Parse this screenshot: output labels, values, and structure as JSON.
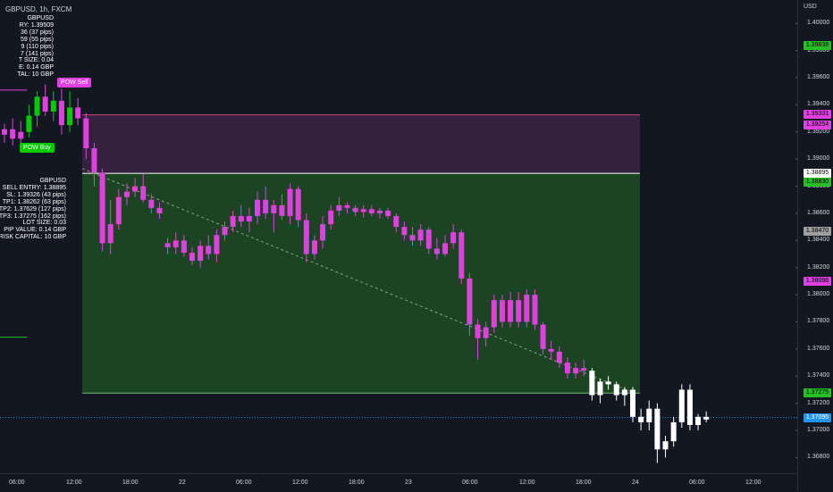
{
  "header": {
    "title": "GBPUSD, 1h, FXCM"
  },
  "axis": {
    "currency": "USD",
    "price_ticks": [
      "1.40000",
      "1.39800",
      "1.39600",
      "1.39400",
      "1.39200",
      "1.39000",
      "1.38800",
      "1.38600",
      "1.38400",
      "1.38200",
      "1.38000",
      "1.37800",
      "1.37600",
      "1.37400",
      "1.37200",
      "1.37000",
      "1.36800"
    ],
    "time_ticks": [
      "06:00",
      "12:00",
      "18:00",
      "22",
      "06:00",
      "12:00",
      "18:00",
      "23",
      "06:00",
      "12:00",
      "18:00",
      "24",
      "06:00",
      "12:00"
    ]
  },
  "price_tags": [
    {
      "text": "1.39838",
      "bg": "#26c026",
      "fg": "#000000",
      "price": 1.39838
    },
    {
      "text": "1.39331",
      "bg": "#e040e0",
      "fg": "#000000",
      "price": 1.39331
    },
    {
      "text": "1.39254",
      "bg": "#e040e0",
      "fg": "#000000",
      "price": 1.39254
    },
    {
      "text": "1.38895",
      "bg": "#ffffff",
      "fg": "#000000",
      "price": 1.38895
    },
    {
      "text": "1.38830",
      "bg": "#26c026",
      "fg": "#000000",
      "price": 1.3883
    },
    {
      "text": "1.38470",
      "bg": "#a0a0a0",
      "fg": "#000000",
      "price": 1.3847
    },
    {
      "text": "1.38098",
      "bg": "#e040e0",
      "fg": "#000000",
      "price": 1.38098
    },
    {
      "text": "1.37275",
      "bg": "#26c026",
      "fg": "#000000",
      "price": 1.37275
    },
    {
      "text": "1.37095",
      "bg": "#2196f3",
      "fg": "#ffffff",
      "price": 1.37095
    }
  ],
  "buy_info_lines": [
    "GBPUSD",
    "RY: 1.39509",
    "36 (37 pips)",
    "59 (55 pips)",
    "9 (110 pips)",
    "7 (141 pips)",
    "T SIZE: 0.04",
    "E: 0.14 GBP",
    "TAL: 10 GBP"
  ],
  "sell_info_lines": [
    "GBPUSD",
    "SELL ENTRY: 1.38895",
    "SL: 1.39326 (43 pips)",
    "TP1: 1.38262 (63 pips)",
    "TP2: 1.37629 (127 pips)",
    "TP3: 1.37275 (162 pips)",
    "LOT SIZE: 0.03",
    "PIP VALUE: 0.14 GBP",
    "RISK CAPITAL: 10 GBP"
  ],
  "signals": {
    "sell": "POW Sell",
    "buy": "POW Buy"
  },
  "trade": {
    "entry": 1.38895,
    "stop": 1.39326,
    "target": 1.37275
  },
  "colors": {
    "bull": "#ffffff",
    "bear": "#e040e0",
    "signal": "#00cc00",
    "profit_zone": "#1b4423",
    "loss_zone": "#33213d"
  },
  "chart_data": {
    "type": "candlestick",
    "symbol": "GBPUSD",
    "timeframe": "1h",
    "ylim": [
      1.3675,
      1.4012
    ],
    "x_ticks": [
      "06:00",
      "12:00",
      "18:00",
      "22",
      "06:00",
      "12:00",
      "18:00",
      "23",
      "06:00",
      "12:00",
      "18:00",
      "24",
      "06:00",
      "12:00"
    ],
    "candles": [
      [
        1.3918,
        1.3926,
        1.3912,
        1.3922
      ],
      [
        1.3922,
        1.393,
        1.391,
        1.3915
      ],
      [
        1.3915,
        1.3928,
        1.3908,
        1.392
      ],
      [
        1.392,
        1.394,
        1.3916,
        1.3932
      ],
      [
        1.3932,
        1.395,
        1.3924,
        1.3946
      ],
      [
        1.3946,
        1.3955,
        1.3932,
        1.3935
      ],
      [
        1.3935,
        1.395,
        1.3928,
        1.3943
      ],
      [
        1.3943,
        1.3952,
        1.3918,
        1.3925
      ],
      [
        1.3925,
        1.395,
        1.392,
        1.3938
      ],
      [
        1.3938,
        1.3945,
        1.3925,
        1.393
      ],
      [
        1.393,
        1.3934,
        1.39,
        1.3908
      ],
      [
        1.3908,
        1.3912,
        1.388,
        1.389
      ],
      [
        1.389,
        1.3893,
        1.3832,
        1.3838
      ],
      [
        1.3838,
        1.387,
        1.383,
        1.3852
      ],
      [
        1.3852,
        1.3878,
        1.3848,
        1.3872
      ],
      [
        1.3872,
        1.3882,
        1.3866,
        1.3876
      ],
      [
        1.3876,
        1.3886,
        1.3872,
        1.388
      ],
      [
        1.388,
        1.3889,
        1.3868,
        1.387
      ],
      [
        1.387,
        1.3874,
        1.386,
        1.3864
      ],
      [
        1.3864,
        1.3868,
        1.3856,
        1.386
      ],
      [
        1.3838,
        1.3842,
        1.383,
        1.3835
      ],
      [
        1.3835,
        1.3846,
        1.383,
        1.384
      ],
      [
        1.384,
        1.3844,
        1.3828,
        1.3831
      ],
      [
        1.3831,
        1.3835,
        1.3822,
        1.3825
      ],
      [
        1.3825,
        1.384,
        1.382,
        1.3836
      ],
      [
        1.3836,
        1.3844,
        1.3826,
        1.383
      ],
      [
        1.383,
        1.3848,
        1.3824,
        1.3844
      ],
      [
        1.3844,
        1.3854,
        1.384,
        1.385
      ],
      [
        1.385,
        1.3862,
        1.3846,
        1.3858
      ],
      [
        1.3858,
        1.3866,
        1.385,
        1.3854
      ],
      [
        1.3854,
        1.3864,
        1.3846,
        1.3858
      ],
      [
        1.3858,
        1.3876,
        1.3852,
        1.387
      ],
      [
        1.387,
        1.388,
        1.3856,
        1.386
      ],
      [
        1.386,
        1.387,
        1.3846,
        1.3866
      ],
      [
        1.3866,
        1.3874,
        1.3855,
        1.3858
      ],
      [
        1.3858,
        1.3882,
        1.3852,
        1.3878
      ],
      [
        1.3878,
        1.388,
        1.385,
        1.3855
      ],
      [
        1.3855,
        1.386,
        1.3824,
        1.383
      ],
      [
        1.383,
        1.3844,
        1.3826,
        1.384
      ],
      [
        1.384,
        1.3858,
        1.3834,
        1.3852
      ],
      [
        1.3852,
        1.3866,
        1.3848,
        1.3862
      ],
      [
        1.3862,
        1.3872,
        1.3858,
        1.3866
      ],
      [
        1.3866,
        1.3868,
        1.386,
        1.3864
      ],
      [
        1.3864,
        1.3866,
        1.3858,
        1.3861
      ],
      [
        1.3861,
        1.3866,
        1.3857,
        1.3863
      ],
      [
        1.3863,
        1.3866,
        1.3858,
        1.386
      ],
      [
        1.386,
        1.3864,
        1.3856,
        1.3862
      ],
      [
        1.3862,
        1.3864,
        1.3856,
        1.3858
      ],
      [
        1.3858,
        1.386,
        1.3846,
        1.385
      ],
      [
        1.385,
        1.3854,
        1.384,
        1.3844
      ],
      [
        1.3844,
        1.385,
        1.3836,
        1.384
      ],
      [
        1.384,
        1.3852,
        1.3836,
        1.3848
      ],
      [
        1.3848,
        1.385,
        1.383,
        1.3834
      ],
      [
        1.3834,
        1.3842,
        1.3826,
        1.383
      ],
      [
        1.383,
        1.3844,
        1.3828,
        1.3838
      ],
      [
        1.3838,
        1.3852,
        1.3834,
        1.3846
      ],
      [
        1.3846,
        1.3848,
        1.3808,
        1.3812
      ],
      [
        1.3812,
        1.3816,
        1.377,
        1.3778
      ],
      [
        1.3778,
        1.3782,
        1.3752,
        1.3768
      ],
      [
        1.3768,
        1.378,
        1.3762,
        1.3776
      ],
      [
        1.3776,
        1.38,
        1.3772,
        1.3796
      ],
      [
        1.3796,
        1.38,
        1.3776,
        1.378
      ],
      [
        1.378,
        1.3802,
        1.3776,
        1.3796
      ],
      [
        1.3796,
        1.3802,
        1.3776,
        1.378
      ],
      [
        1.378,
        1.3804,
        1.3776,
        1.38
      ],
      [
        1.38,
        1.3804,
        1.3774,
        1.3778
      ],
      [
        1.3778,
        1.378,
        1.3756,
        1.376
      ],
      [
        1.376,
        1.3766,
        1.3752,
        1.3758
      ],
      [
        1.3758,
        1.3762,
        1.3746,
        1.375
      ],
      [
        1.375,
        1.3754,
        1.3738,
        1.3742
      ],
      [
        1.3742,
        1.375,
        1.3738,
        1.3746
      ],
      [
        1.3746,
        1.3752,
        1.374,
        1.3744
      ],
      [
        1.3744,
        1.3746,
        1.3722,
        1.3726
      ],
      [
        1.3726,
        1.3738,
        1.372,
        1.3736
      ],
      [
        1.3736,
        1.374,
        1.373,
        1.3734
      ],
      [
        1.3734,
        1.3736,
        1.3722,
        1.3726
      ],
      [
        1.3726,
        1.3732,
        1.3718,
        1.373
      ],
      [
        1.373,
        1.3732,
        1.3706,
        1.371
      ],
      [
        1.371,
        1.3716,
        1.37,
        1.3706
      ],
      [
        1.3706,
        1.3722,
        1.37,
        1.3716
      ],
      [
        1.3716,
        1.372,
        1.3676,
        1.3686
      ],
      [
        1.3686,
        1.3696,
        1.368,
        1.3692
      ],
      [
        1.3692,
        1.371,
        1.3688,
        1.3706
      ],
      [
        1.3706,
        1.3734,
        1.3702,
        1.373
      ],
      [
        1.373,
        1.3734,
        1.37,
        1.3704
      ],
      [
        1.3704,
        1.3712,
        1.37,
        1.371
      ],
      [
        1.371,
        1.3714,
        1.3706,
        1.3708
      ]
    ]
  }
}
